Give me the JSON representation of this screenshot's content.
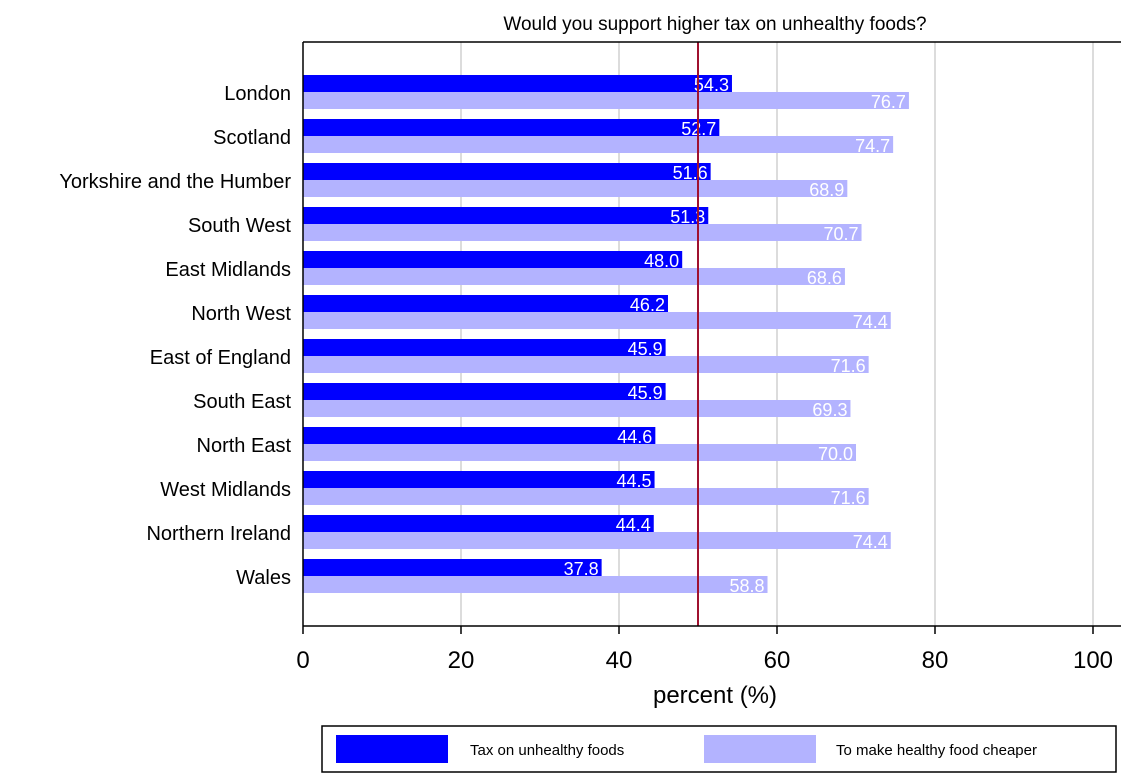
{
  "chart_data": {
    "type": "bar",
    "orientation": "horizontal",
    "title": "Would you support higher tax on unhealthy foods?",
    "xlabel": "percent (%)",
    "ylabel": "",
    "xlim": [
      0,
      100
    ],
    "xticks": [
      0,
      20,
      40,
      60,
      80,
      100
    ],
    "reference_line": {
      "x": 50,
      "color": "#a0112f"
    },
    "grid": "vertical",
    "legend_position": "bottom",
    "categories": [
      "London",
      "Scotland",
      "Yorkshire and the Humber",
      "South West",
      "East Midlands",
      "North West",
      "East of England",
      "South East",
      "North East",
      "West Midlands",
      "Northern Ireland",
      "Wales"
    ],
    "series": [
      {
        "name": "Tax on unhealthy foods",
        "color": "#0000ff",
        "values": [
          54.3,
          52.7,
          51.6,
          51.3,
          48.0,
          46.2,
          45.9,
          45.9,
          44.6,
          44.5,
          44.4,
          37.8
        ],
        "labels": [
          "54.3",
          "52.7",
          "51.6",
          "51.3",
          "48.0",
          "46.2",
          "45.9",
          "45.9",
          "44.6",
          "44.5",
          "44.4",
          "37.8"
        ]
      },
      {
        "name": "To make healthy food cheaper",
        "color": "#b3b3ff",
        "values": [
          76.7,
          74.7,
          68.9,
          70.7,
          68.6,
          74.4,
          71.6,
          69.3,
          70.0,
          71.6,
          74.4,
          58.8
        ],
        "labels": [
          "76.7",
          "74.7",
          "68.9",
          "70.7",
          "68.6",
          "74.4",
          "71.6",
          "69.3",
          "70.0",
          "71.6",
          "74.4",
          "58.8"
        ]
      }
    ]
  }
}
